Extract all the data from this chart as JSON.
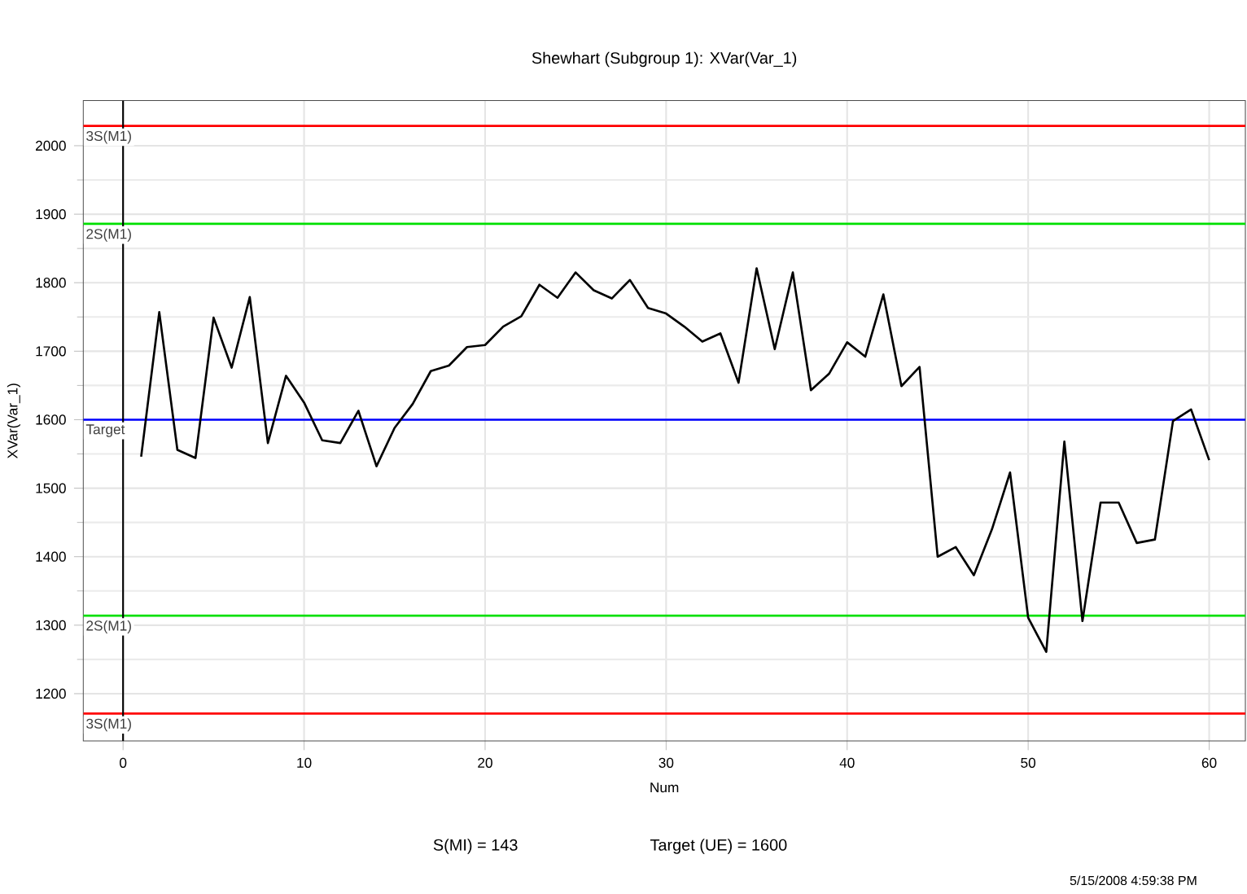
{
  "chart_data": {
    "type": "line",
    "title": "Shewhart (Subgroup 1): XVar(Var_1)",
    "xlabel": "Num",
    "ylabel": "XVar(Var_1)",
    "x": [
      1,
      2,
      3,
      4,
      5,
      6,
      7,
      8,
      9,
      10,
      11,
      12,
      13,
      14,
      15,
      16,
      17,
      18,
      19,
      20,
      21,
      22,
      23,
      24,
      25,
      26,
      27,
      28,
      29,
      30,
      31,
      32,
      33,
      34,
      35,
      36,
      37,
      38,
      39,
      40,
      41,
      42,
      43,
      44,
      45,
      46,
      47,
      48,
      49,
      50,
      51,
      52,
      53,
      54,
      55,
      56,
      57,
      58,
      59,
      60
    ],
    "series": [
      {
        "color": "#000000",
        "values": [
          1546,
          1757,
          1556,
          1544,
          1749,
          1676,
          1779,
          1566,
          1664,
          1625,
          1570,
          1566,
          1613,
          1532,
          1588,
          1623,
          1671,
          1679,
          1706,
          1709,
          1736,
          1751,
          1797,
          1778,
          1815,
          1789,
          1777,
          1804,
          1763,
          1755,
          1736,
          1714,
          1726,
          1654,
          1821,
          1703,
          1815,
          1643,
          1667,
          1713,
          1692,
          1783,
          1649,
          1677,
          1400,
          1414,
          1373,
          1440,
          1523,
          1311,
          1261,
          1568,
          1306,
          1479,
          1479,
          1420,
          1425,
          1598,
          1615,
          1541
        ]
      }
    ],
    "xlim": [
      -2.2,
      62
    ],
    "ylim": [
      1131,
      2066
    ],
    "xticks": [
      0,
      10,
      20,
      30,
      40,
      50,
      60
    ],
    "yticks": [
      1200,
      1300,
      1400,
      1500,
      1600,
      1700,
      1800,
      1900,
      2000
    ],
    "grid": true,
    "marker": "none",
    "line_style": "solid",
    "ref_lines": [
      {
        "axis": "y",
        "value": 2029,
        "label": "3S(M1)",
        "color": "#ff0000"
      },
      {
        "axis": "y",
        "value": 1886,
        "label": "2S(M1)",
        "color": "#00e000"
      },
      {
        "axis": "y",
        "value": 1600,
        "label": "Target",
        "color": "#0000ff"
      },
      {
        "axis": "y",
        "value": 1314,
        "label": "2S(M1)",
        "color": "#00e000"
      },
      {
        "axis": "y",
        "value": 1171,
        "label": "3S(M1)",
        "color": "#ff0000"
      },
      {
        "axis": "x",
        "value": 0,
        "color": "#000000"
      }
    ],
    "annotations": [
      "S(MI) = 143",
      "Target (UE) = 1600",
      "5/15/2008 4:59:38 PM"
    ]
  }
}
